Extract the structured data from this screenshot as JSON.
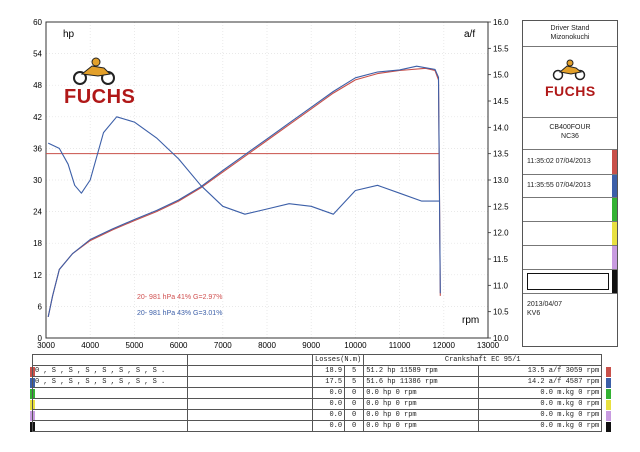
{
  "logo": {
    "brand": "FUCHS"
  },
  "header": {
    "station_line1": "Driver Stand",
    "station_line2": "Mizonokuchi"
  },
  "bike": {
    "model": "CB400FOUR",
    "code": "NC36"
  },
  "runs": [
    {
      "time": "11:35:02  07/04/2013",
      "color": "#c8504a"
    },
    {
      "time": "11:35:55  07/04/2013",
      "color": "#3c5fa8"
    }
  ],
  "slot_colors": [
    "#c8504a",
    "#3c5fa8",
    "#33b233",
    "#e8e040",
    "#c89be0",
    "#111111"
  ],
  "footer": {
    "date": "2013/04/07",
    "code": "KV6"
  },
  "annotations": [
    {
      "text": "20-  981 hPa  41%     G=2.97%",
      "color": "#d05050"
    },
    {
      "text": "20-  981 hPa  43%     G=3.01%",
      "color": "#3c5fa8"
    }
  ],
  "chart_data": {
    "type": "line",
    "title": "",
    "xlabel": "rpm",
    "ylabel_left": "hp",
    "ylabel_right": "a/f",
    "x_ticks": [
      3000,
      4000,
      5000,
      6000,
      7000,
      8000,
      9000,
      10000,
      11000,
      12000,
      13000
    ],
    "y_left_ticks": [
      0,
      6,
      12,
      18,
      24,
      30,
      36,
      42,
      48,
      54,
      60
    ],
    "y_right_ticks": [
      10.0,
      10.5,
      11.0,
      11.5,
      12.0,
      12.5,
      13.0,
      13.5,
      14.0,
      14.5,
      15.0,
      15.5,
      16.0
    ],
    "xlim": [
      3000,
      13000
    ],
    "ylim_left": [
      0,
      60
    ],
    "ylim_right": [
      10.0,
      16.0
    ],
    "grid": true,
    "reference_line": {
      "axis": "right",
      "value": 13.5,
      "xrange": [
        3000,
        11900
      ],
      "color": "#c8504a"
    },
    "series": [
      {
        "name": "",
        "axis": "left",
        "color": "#c8504a",
        "x": [
          3050,
          3150,
          3300,
          3600,
          4000,
          4500,
          5000,
          5500,
          6000,
          6500,
          7000,
          7500,
          8000,
          8500,
          9000,
          9500,
          10000,
          10500,
          11000,
          11589,
          11800,
          11880,
          11920
        ],
        "values": [
          4,
          8,
          13,
          16,
          18.5,
          20.5,
          22.3,
          24,
          26,
          28.5,
          31.5,
          34.5,
          37.5,
          40.5,
          43.5,
          46.5,
          49,
          50.2,
          50.8,
          51.2,
          50.8,
          49,
          8
        ]
      },
      {
        "name": "",
        "axis": "left",
        "color": "#3c5fa8",
        "x": [
          3050,
          3150,
          3300,
          3600,
          4000,
          4500,
          5000,
          5500,
          6000,
          6500,
          7000,
          7500,
          8000,
          8500,
          9000,
          9500,
          10000,
          10500,
          11000,
          11386,
          11800,
          11880,
          11920
        ],
        "values": [
          4,
          8,
          13,
          16,
          18.7,
          20.7,
          22.5,
          24.2,
          26.2,
          28.7,
          31.8,
          34.8,
          37.8,
          40.8,
          43.8,
          46.8,
          49.4,
          50.5,
          50.9,
          51.6,
          51.0,
          49.5,
          8.5
        ]
      },
      {
        "name": "",
        "axis": "right",
        "color": "#3c5fa8",
        "x": [
          3050,
          3300,
          3500,
          3650,
          3800,
          4000,
          4300,
          4600,
          5000,
          5500,
          6000,
          6500,
          7000,
          7500,
          8000,
          8500,
          9000,
          9500,
          10000,
          10500,
          11000,
          11500,
          11900
        ],
        "values": [
          13.7,
          13.6,
          13.3,
          12.9,
          12.75,
          13.0,
          13.9,
          14.2,
          14.1,
          13.8,
          13.4,
          12.9,
          12.5,
          12.35,
          12.45,
          12.55,
          12.5,
          12.35,
          12.8,
          12.9,
          12.75,
          12.6,
          12.6
        ]
      }
    ]
  },
  "table": {
    "losses_header": "Losses(N.m)",
    "crank_header": "Crankshaft EC 95/1",
    "rows": [
      {
        "settings": "0 , S , S , S , S , S , S , S .",
        "loss": "18.9",
        "n": "5",
        "power": "51.2 hp 11589 rpm",
        "af": "13.5 a/f 3059 rpm"
      },
      {
        "settings": "0 , S , S , S , S , S , S , S .",
        "loss": "17.5",
        "n": "5",
        "power": "51.6 hp 11386 rpm",
        "af": "14.2 a/f 4587 rpm"
      },
      {
        "settings": "",
        "loss": "0.0",
        "n": "0",
        "power": "0.0 hp 0 rpm",
        "af": "0.0 m.kg 0 rpm"
      },
      {
        "settings": "",
        "loss": "0.0",
        "n": "0",
        "power": "0.0 hp 0 rpm",
        "af": "0.0 m.kg 0 rpm"
      },
      {
        "settings": "",
        "loss": "0.0",
        "n": "0",
        "power": "0.0 hp 0 rpm",
        "af": "0.0 m.kg 0 rpm"
      },
      {
        "settings": "",
        "loss": "0.0",
        "n": "0",
        "power": "0.0 hp 0 rpm",
        "af": "0.0 m.kg 0 rpm"
      }
    ]
  }
}
